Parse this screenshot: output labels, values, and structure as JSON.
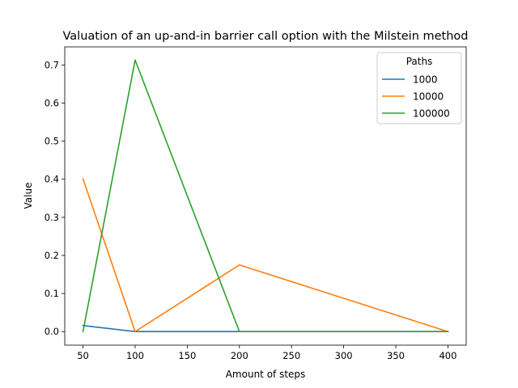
{
  "chart_data": {
    "type": "line",
    "title": "Valuation of an up-and-in barrier call option with the Milstein method",
    "xlabel": "Amount of steps",
    "ylabel": "Value",
    "x": [
      50,
      100,
      200,
      400
    ],
    "xlim": [
      32.5,
      417.5
    ],
    "ylim": [
      -0.0356,
      0.7475
    ],
    "xticks": [
      50,
      100,
      150,
      200,
      250,
      300,
      350,
      400
    ],
    "yticks": [
      0.0,
      0.1,
      0.2,
      0.3,
      0.4,
      0.5,
      0.6,
      0.7
    ],
    "grid": false,
    "legend": {
      "title": "Paths",
      "placement": "top-right"
    },
    "series": [
      {
        "name": "1000",
        "color": "#1f77b4",
        "values": [
          0.016,
          0.0,
          0.0,
          0.0
        ]
      },
      {
        "name": "10000",
        "color": "#ff7f0e",
        "values": [
          0.401,
          0.0,
          0.175,
          0.0
        ]
      },
      {
        "name": "100000",
        "color": "#2ca02c",
        "values": [
          0.0,
          0.713,
          0.0,
          0.0
        ]
      }
    ]
  }
}
